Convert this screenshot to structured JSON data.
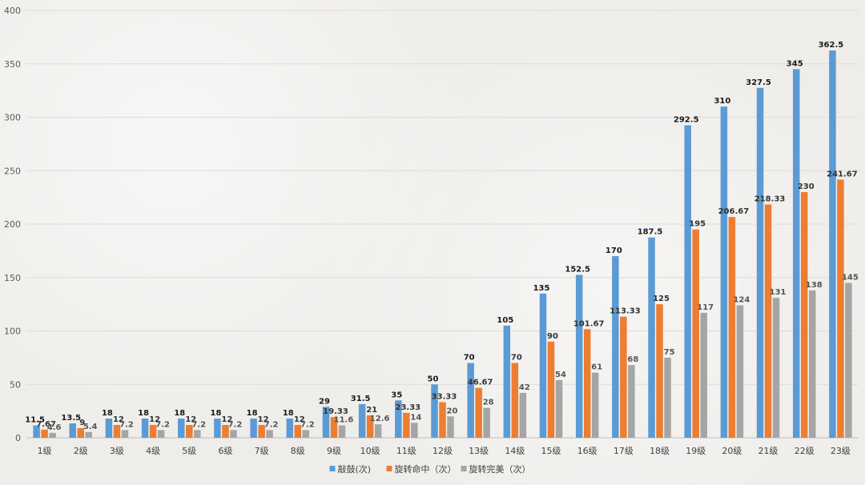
{
  "chart_data": {
    "type": "bar",
    "title": "",
    "xlabel": "",
    "ylabel": "",
    "ylim": [
      0,
      400
    ],
    "yticks": [
      0,
      50,
      100,
      150,
      200,
      250,
      300,
      350,
      400
    ],
    "grid": true,
    "legend_position": "bottom",
    "categories": [
      "1级",
      "2级",
      "3级",
      "4级",
      "5级",
      "6级",
      "7级",
      "8级",
      "9级",
      "10级",
      "11级",
      "12级",
      "13级",
      "14级",
      "15级",
      "16级",
      "17级",
      "18级",
      "19级",
      "20级",
      "21级",
      "22级",
      "23级"
    ],
    "series": [
      {
        "name": "敲鼓(次)",
        "color": "#5b9bd5",
        "values": [
          11.5,
          13.5,
          18,
          18,
          18,
          18,
          18,
          18,
          29,
          31.5,
          35,
          50,
          70,
          105,
          135,
          152.5,
          170,
          187.5,
          292.5,
          310,
          327.5,
          345,
          362.5
        ]
      },
      {
        "name": "旋转命中（次）",
        "color": "#ed7d31",
        "values": [
          7.67,
          9,
          12,
          12,
          12,
          12,
          12,
          12,
          19.33,
          21,
          23.33,
          33.33,
          46.67,
          70,
          90,
          101.67,
          113.33,
          125,
          195,
          206.67,
          218.33,
          230,
          241.67
        ]
      },
      {
        "name": "旋转完美（次）",
        "color": "#a5a5a5",
        "values": [
          4.6,
          5.4,
          7.2,
          7.2,
          7.2,
          7.2,
          7.2,
          7.2,
          11.6,
          12.6,
          14,
          20,
          28,
          42,
          54,
          61,
          68,
          75,
          117,
          124,
          131,
          138,
          145
        ]
      }
    ]
  }
}
